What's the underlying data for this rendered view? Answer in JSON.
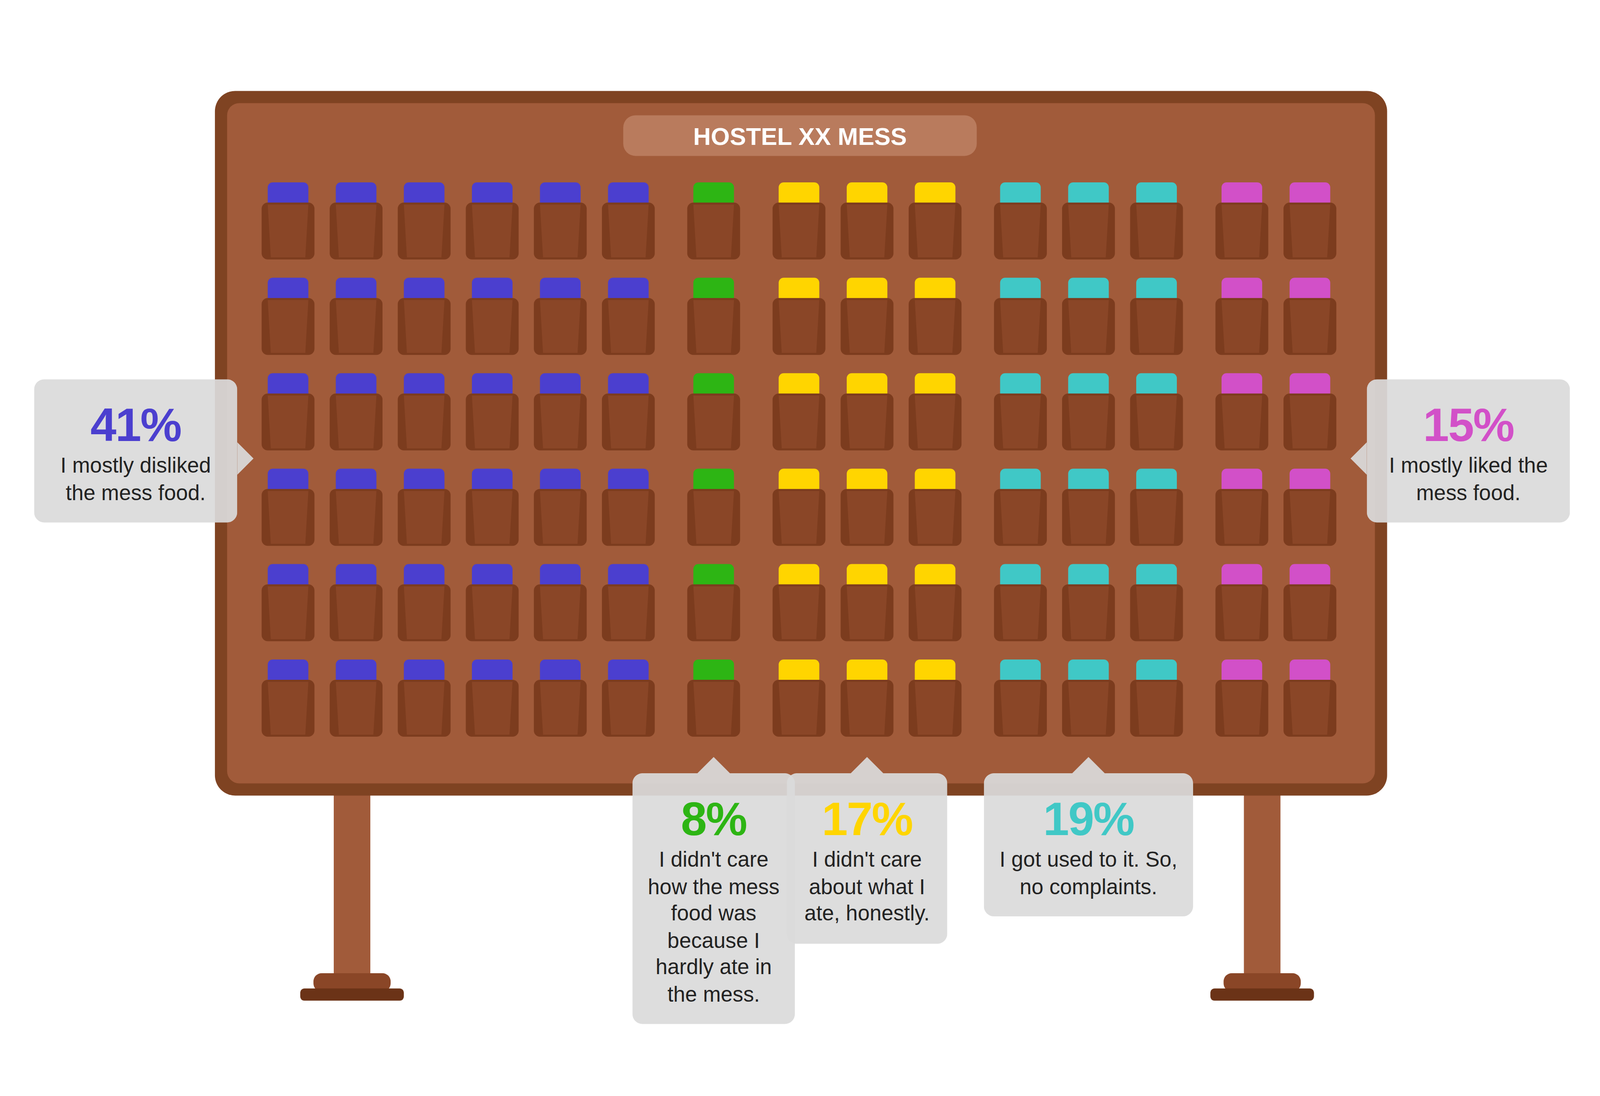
{
  "chart_data": {
    "type": "waffle",
    "title": "HOSTEL XX MESS",
    "categories": [
      "I mostly disliked the mess food.",
      "I didn't care how the mess food was because I hardly ate in the mess.",
      "I didn't care about what I ate, honestly.",
      "I got used to it. So, no complaints.",
      "I mostly liked the mess food."
    ],
    "values": [
      41,
      8,
      17,
      19,
      15
    ],
    "value_labels": [
      "41%",
      "8%",
      "17%",
      "19%",
      "15%"
    ],
    "colors": [
      "#4b3fcf",
      "#2db514",
      "#ffd500",
      "#40c8c6",
      "#d250c8"
    ]
  }
}
